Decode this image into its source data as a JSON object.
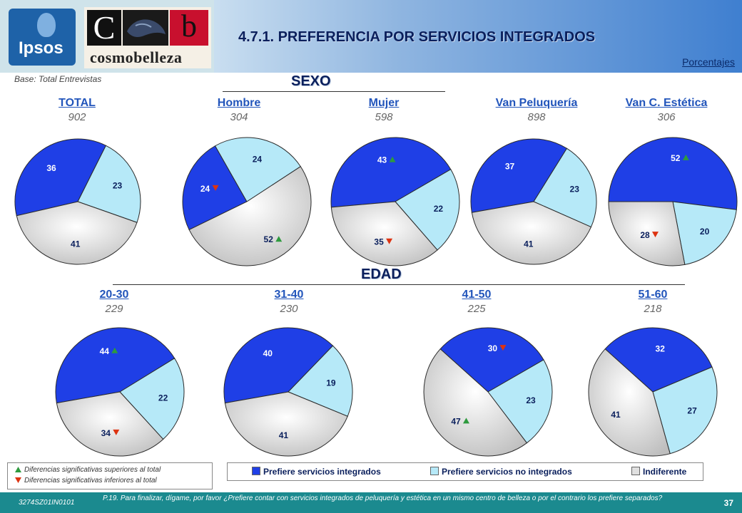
{
  "header": {
    "title": "4.7.1.  PREFERENCIA POR SERVICIOS INTEGRADOS",
    "subtitle": "Porcentajes",
    "base": "Base: Total Entrevistas",
    "logo_ipsos": "Ipsos",
    "logo_c": "C",
    "logo_b": "b",
    "logo_word": "cosmobelleza"
  },
  "sections": {
    "sexo": "SEXO",
    "edad": "EDAD"
  },
  "colors": {
    "integrados": "#1f3fe6",
    "no_integrados": "#b6e9f8",
    "indiferente": "#e0e0e0",
    "up": "#2e9a3e",
    "down": "#dd3311"
  },
  "chart_data": [
    {
      "type": "pie",
      "label": "TOTAL",
      "n": "902",
      "categories": [
        "Prefiere servicios integrados",
        "Prefiere servicios no integrados",
        "Indiferente"
      ],
      "values": [
        36,
        23,
        41
      ],
      "markers": [
        null,
        null,
        null
      ]
    },
    {
      "type": "pie",
      "label": "Hombre",
      "n": "304",
      "categories": [
        "Prefiere servicios integrados",
        "Prefiere servicios no integrados",
        "Indiferente"
      ],
      "values": [
        24,
        24,
        52
      ],
      "markers": [
        "down",
        null,
        "up"
      ]
    },
    {
      "type": "pie",
      "label": "Mujer",
      "n": "598",
      "categories": [
        "Prefiere servicios integrados",
        "Prefiere servicios no integrados",
        "Indiferente"
      ],
      "values": [
        43,
        22,
        35
      ],
      "markers": [
        "up",
        null,
        "down"
      ]
    },
    {
      "type": "pie",
      "label": "Van Peluquería",
      "n": "898",
      "categories": [
        "Prefiere servicios integrados",
        "Prefiere servicios no integrados",
        "Indiferente"
      ],
      "values": [
        37,
        23,
        41
      ],
      "markers": [
        null,
        null,
        null
      ]
    },
    {
      "type": "pie",
      "label": "Van C. Estética",
      "n": "306",
      "categories": [
        "Prefiere servicios integrados",
        "Prefiere servicios no integrados",
        "Indiferente"
      ],
      "values": [
        52,
        20,
        28
      ],
      "markers": [
        "up",
        null,
        "down"
      ]
    },
    {
      "type": "pie",
      "label": "20-30",
      "n": "229",
      "categories": [
        "Prefiere servicios integrados",
        "Prefiere servicios no integrados",
        "Indiferente"
      ],
      "values": [
        44,
        22,
        34
      ],
      "markers": [
        "up",
        null,
        "down"
      ]
    },
    {
      "type": "pie",
      "label": "31-40",
      "n": "230",
      "categories": [
        "Prefiere servicios integrados",
        "Prefiere servicios no integrados",
        "Indiferente"
      ],
      "values": [
        40,
        19,
        41
      ],
      "markers": [
        null,
        null,
        null
      ]
    },
    {
      "type": "pie",
      "label": "41-50",
      "n": "225",
      "categories": [
        "Prefiere servicios integrados",
        "Prefiere servicios no integrados",
        "Indiferente"
      ],
      "values": [
        30,
        23,
        47
      ],
      "markers": [
        "down",
        null,
        "up"
      ]
    },
    {
      "type": "pie",
      "label": "51-60",
      "n": "218",
      "categories": [
        "Prefiere servicios integrados",
        "Prefiere servicios no integrados",
        "Indiferente"
      ],
      "values": [
        32,
        27,
        41
      ],
      "markers": [
        null,
        null,
        null
      ]
    }
  ],
  "legend": {
    "items": [
      "Prefiere servicios integrados",
      "Prefiere servicios no integrados",
      "Indiferente"
    ],
    "sig_up": "Diferencias significativas superiores al total",
    "sig_down": "Diferencias significativas inferiores al total"
  },
  "footer": {
    "code": "3274SZ01IN0101",
    "question": "P.19. Para finalizar, dígame, por favor ¿Prefiere contar con servicios integrados de peluquería y estética en un mismo centro de belleza o por el contrario los prefiere separados?",
    "page": "37"
  }
}
